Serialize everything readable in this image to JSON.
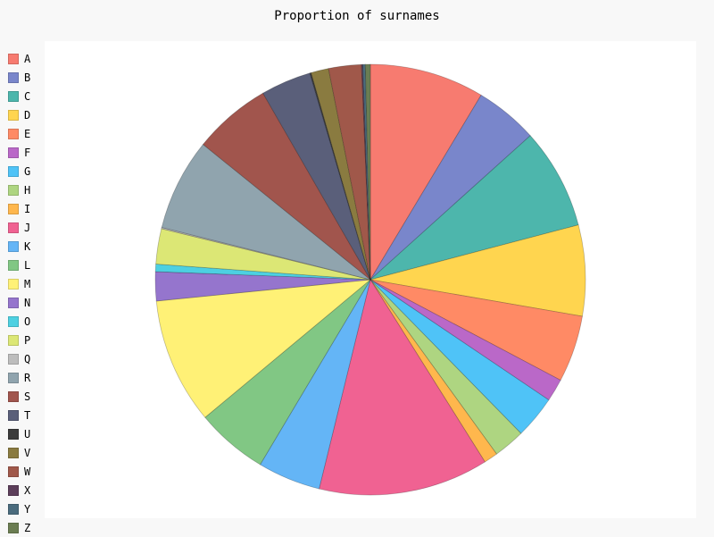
{
  "chart_data": {
    "type": "pie",
    "title": "Proportion of surnames",
    "legend_position": "left",
    "categories": [
      "A",
      "B",
      "C",
      "D",
      "E",
      "F",
      "G",
      "H",
      "I",
      "J",
      "K",
      "L",
      "M",
      "N",
      "O",
      "P",
      "Q",
      "R",
      "S",
      "T",
      "U",
      "V",
      "W",
      "X",
      "Y",
      "Z"
    ],
    "values": [
      9.1,
      5.0,
      8.0,
      7.2,
      5.3,
      1.8,
      3.4,
      2.5,
      1.1,
      13.5,
      5.0,
      5.7,
      10.0,
      2.3,
      0.6,
      2.8,
      0.1,
      7.3,
      6.2,
      4.0,
      0.1,
      1.4,
      2.6,
      0.1,
      0.2,
      0.4
    ],
    "colors": [
      "#f77b70",
      "#7986cb",
      "#4db6ac",
      "#ffd54f",
      "#ff8a65",
      "#ba68c8",
      "#4fc3f7",
      "#aed581",
      "#ffb74d",
      "#f06292",
      "#64b5f6",
      "#81c784",
      "#fff176",
      "#9575cd",
      "#4dd0e1",
      "#dce775",
      "#bdbdbd",
      "#90a4ae",
      "#a1554d",
      "#5a5f7a",
      "#3b3b3b",
      "#8a7b40",
      "#a0584a",
      "#5c3e5a",
      "#4a6b7d",
      "#6b7d52"
    ]
  }
}
